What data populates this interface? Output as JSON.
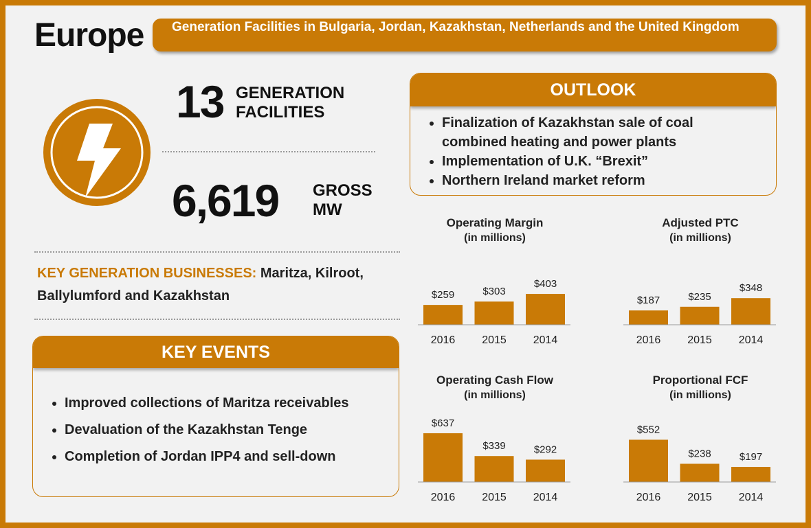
{
  "header": {
    "title": "Europe",
    "subtitle": "Generation Facilities in Bulgaria, Jordan, Kazakhstan, Netherlands and the United Kingdom"
  },
  "stats": [
    {
      "value": "13",
      "label": "GENERATION FACILITIES"
    },
    {
      "value": "6,619",
      "label": "GROSS MW"
    }
  ],
  "key_businesses": {
    "label": "KEY GENERATION BUSINESSES:",
    "text": "Maritza, Kilroot, Ballylumford and Kazakhstan"
  },
  "outlook": {
    "title": "OUTLOOK",
    "items": [
      "Finalization of Kazakhstan sale of coal combined heating and power plants",
      "Implementation of U.K. “Brexit”",
      "Northern Ireland market reform"
    ]
  },
  "key_events": {
    "title": "KEY EVENTS",
    "items": [
      "Improved collections of Maritza receivables",
      "Devaluation of the Kazakhstan Tenge",
      "Completion of Jordan IPP4 and sell-down"
    ]
  },
  "chart_data": [
    {
      "type": "bar",
      "title": "Operating Margin",
      "subtitle": "(in millions)",
      "categories": [
        "2016",
        "2015",
        "2014"
      ],
      "values": [
        259,
        303,
        403
      ],
      "value_labels": [
        "$259",
        "$303",
        "$403"
      ],
      "color": "#c97a06"
    },
    {
      "type": "bar",
      "title": "Adjusted PTC",
      "subtitle": "(in millions)",
      "categories": [
        "2016",
        "2015",
        "2014"
      ],
      "values": [
        187,
        235,
        348
      ],
      "value_labels": [
        "$187",
        "$235",
        "$348"
      ],
      "color": "#c97a06"
    },
    {
      "type": "bar",
      "title": "Operating Cash Flow",
      "subtitle": "(in millions)",
      "categories": [
        "2016",
        "2015",
        "2014"
      ],
      "values": [
        637,
        339,
        292
      ],
      "value_labels": [
        "$637",
        "$339",
        "$292"
      ],
      "color": "#c97a06"
    },
    {
      "type": "bar",
      "title": "Proportional FCF",
      "subtitle": "(in millions)",
      "categories": [
        "2016",
        "2015",
        "2014"
      ],
      "values": [
        552,
        238,
        197
      ],
      "value_labels": [
        "$552",
        "$238",
        "$197"
      ],
      "color": "#c97a06"
    }
  ]
}
